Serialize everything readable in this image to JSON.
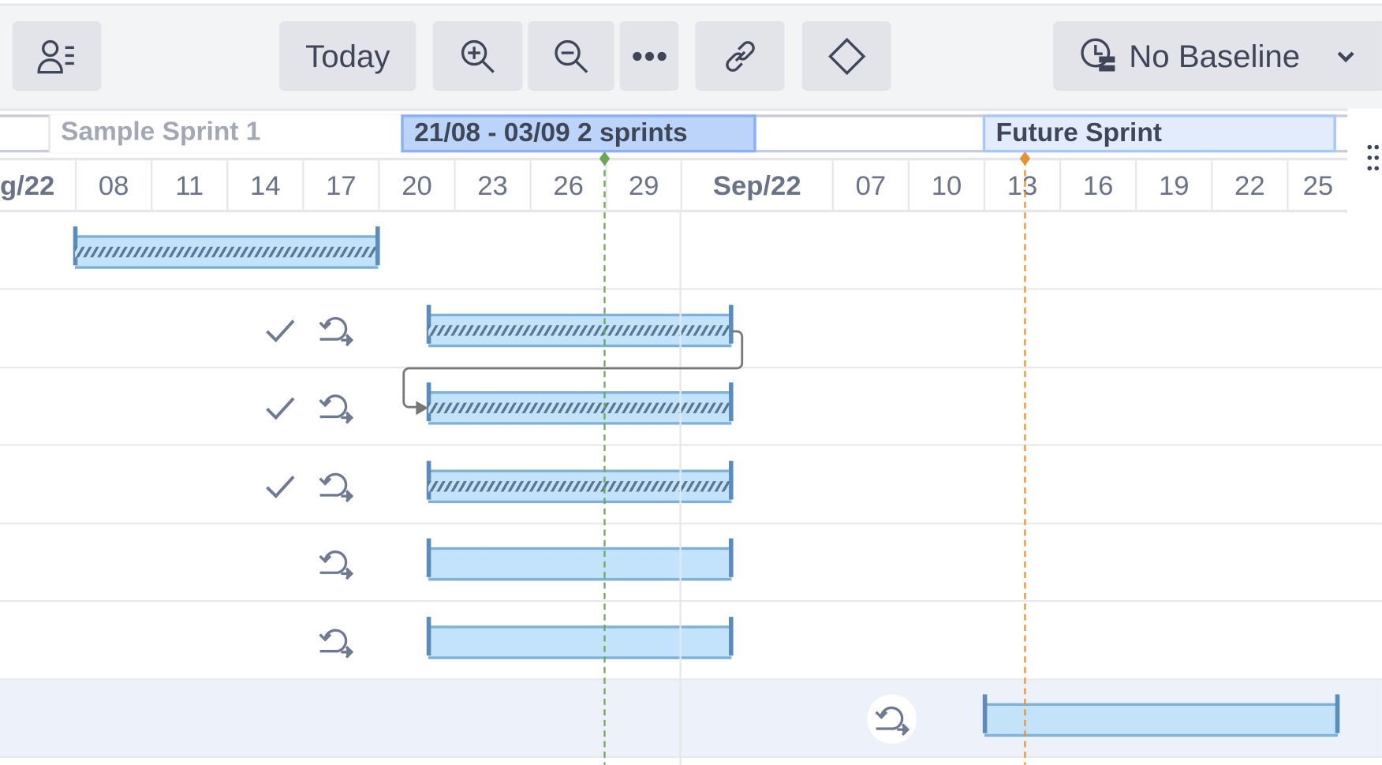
{
  "toolbar": {
    "resource_view_icon": "user-list-icon",
    "today_label": "Today",
    "zoom_in_icon": "zoom-in-icon",
    "zoom_out_icon": "zoom-out-icon",
    "more_icon": "more-horizontal-icon",
    "link_icon": "link-icon",
    "milestone_icon": "diamond-icon",
    "baseline_label": "No Baseline",
    "baseline_icon": "baseline-clock-icon"
  },
  "sprints": [
    {
      "label": "Sample Sprint 1",
      "style": "past"
    },
    {
      "label": "21/08 - 03/09 2 sprints",
      "style": "active"
    },
    {
      "label": "Future Sprint",
      "style": "future"
    }
  ],
  "timeline": {
    "date_labels": [
      "g/22",
      "08",
      "11",
      "14",
      "17",
      "20",
      "23",
      "26",
      "29",
      "Sep/22",
      "07",
      "10",
      "13",
      "16",
      "19",
      "22",
      "25"
    ],
    "today_marker_color": "#6aa84f",
    "marker_color": "#e69138"
  },
  "tasks": [
    {
      "start": "2022-08-08",
      "end": "2022-08-20",
      "progress_hatched": true,
      "done": false,
      "recurring": false
    },
    {
      "start": "2022-08-22",
      "end": "2022-09-03",
      "progress_hatched": true,
      "done": true,
      "recurring": true
    },
    {
      "start": "2022-08-22",
      "end": "2022-09-03",
      "progress_hatched": true,
      "done": true,
      "recurring": true
    },
    {
      "start": "2022-08-22",
      "end": "2022-09-03",
      "progress_hatched": true,
      "done": true,
      "recurring": true
    },
    {
      "start": "2022-08-22",
      "end": "2022-09-03",
      "progress_hatched": false,
      "done": false,
      "recurring": true
    },
    {
      "start": "2022-08-22",
      "end": "2022-09-03",
      "progress_hatched": false,
      "done": false,
      "recurring": true
    },
    {
      "start": "2022-09-13",
      "end": "2022-09-27",
      "progress_hatched": false,
      "done": false,
      "recurring": true,
      "selected": true
    }
  ],
  "colors": {
    "bar_fill": "#c3e3fa",
    "bar_border": "#5c8db8",
    "active_sprint": "#bcd3fa",
    "future_sprint": "#e3ecfd",
    "selected_row": "#edf1fa"
  }
}
